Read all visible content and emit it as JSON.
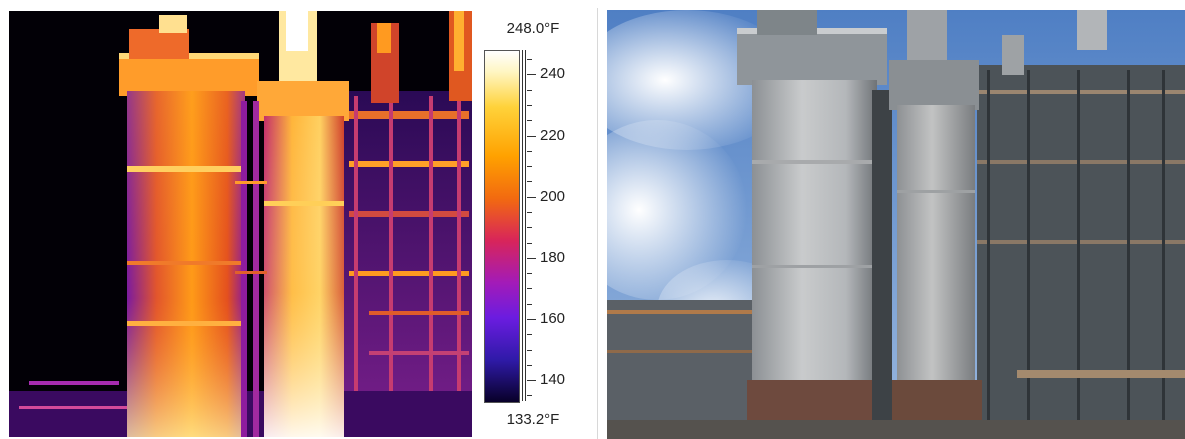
{
  "scale": {
    "max_label": "248.0°F",
    "min_label": "133.2°F",
    "max_value": 248.0,
    "min_value": 133.2,
    "unit": "°F",
    "ticks": [
      {
        "value": 240,
        "label": "240"
      },
      {
        "value": 220,
        "label": "220"
      },
      {
        "value": 200,
        "label": "200"
      },
      {
        "value": 180,
        "label": "180"
      },
      {
        "value": 160,
        "label": "160"
      },
      {
        "value": 140,
        "label": "140"
      }
    ],
    "palette": [
      "#080028",
      "#2f1aa8",
      "#6b1ce0",
      "#a31bb8",
      "#d8255a",
      "#f26a10",
      "#ffa100",
      "#ffd23a",
      "#fff6c2",
      "#ffffff"
    ]
  }
}
